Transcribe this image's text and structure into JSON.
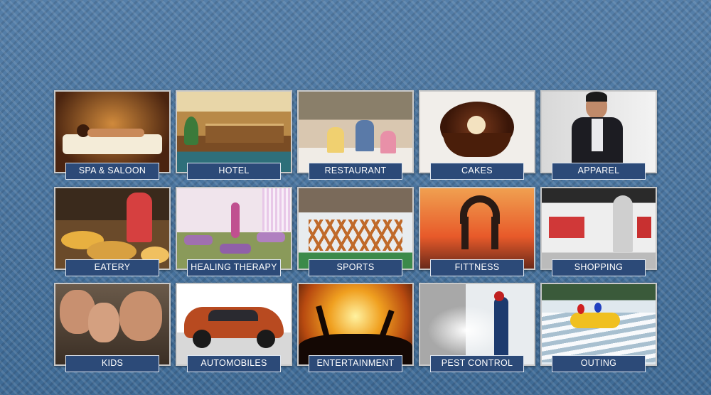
{
  "categories": [
    {
      "label": "SPA & SALOON",
      "icon": "spa-icon"
    },
    {
      "label": "HOTEL",
      "icon": "hotel-icon"
    },
    {
      "label": "RESTAURANT",
      "icon": "restaurant-icon"
    },
    {
      "label": "CAKES",
      "icon": "cake-icon"
    },
    {
      "label": "APPAREL",
      "icon": "apparel-icon"
    },
    {
      "label": "EATERY",
      "icon": "eatery-icon"
    },
    {
      "label": "HEALING THERAPY",
      "icon": "healing-therapy-icon"
    },
    {
      "label": "SPORTS",
      "icon": "sports-icon"
    },
    {
      "label": "FITTNESS",
      "icon": "fitness-icon"
    },
    {
      "label": "SHOPPING",
      "icon": "shopping-icon"
    },
    {
      "label": "KIDS",
      "icon": "kids-icon"
    },
    {
      "label": "AUTOMOBILES",
      "icon": "automobile-icon"
    },
    {
      "label": "ENTERTAINMENT",
      "icon": "entertainment-icon"
    },
    {
      "label": "PEST CONTROL",
      "icon": "pest-control-icon"
    },
    {
      "label": "OUTING",
      "icon": "outing-icon"
    }
  ],
  "colors": {
    "background": "#4f79a3",
    "label_bg": "#2c4a78",
    "label_border": "#dfe6f0"
  }
}
